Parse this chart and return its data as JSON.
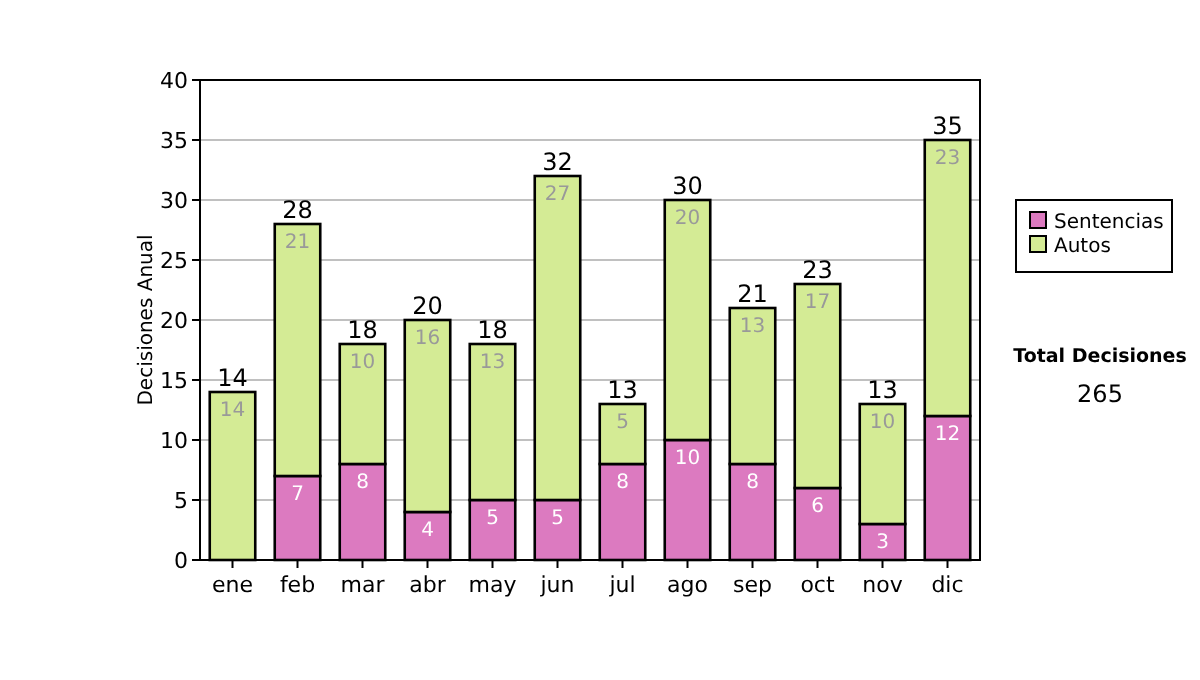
{
  "chart_data": {
    "type": "bar",
    "ylabel": "Decisiones Anual",
    "categories": [
      "ene",
      "feb",
      "mar",
      "abr",
      "may",
      "jun",
      "jul",
      "ago",
      "sep",
      "oct",
      "nov",
      "dic"
    ],
    "stacked": true,
    "series": [
      {
        "name": "Sentencias",
        "color": "#dc7ac0",
        "values": [
          0,
          7,
          8,
          4,
          5,
          5,
          8,
          10,
          8,
          6,
          3,
          12
        ],
        "value_labels": [
          null,
          "7",
          "8",
          "4",
          "5",
          "5",
          "8",
          "10",
          "8",
          "6",
          "3",
          "12"
        ]
      },
      {
        "name": "Autos",
        "color": "#d4eb95",
        "values": [
          14,
          21,
          10,
          16,
          13,
          27,
          5,
          20,
          13,
          17,
          10,
          23
        ],
        "value_labels": [
          "14",
          "21",
          "10",
          "16",
          "13",
          "27",
          "5",
          "20",
          "13",
          "17",
          "10",
          "23"
        ]
      }
    ],
    "totals": [
      "14",
      "28",
      "18",
      "20",
      "18",
      "32",
      "13",
      "30",
      "21",
      "23",
      "13",
      "35"
    ],
    "ylim": [
      0,
      40
    ],
    "yticks": [
      0,
      5,
      10,
      15,
      20,
      25,
      30,
      35,
      40
    ],
    "grid": "y",
    "legend": "right",
    "annotations": [
      "Total Decisiones",
      "265"
    ]
  }
}
